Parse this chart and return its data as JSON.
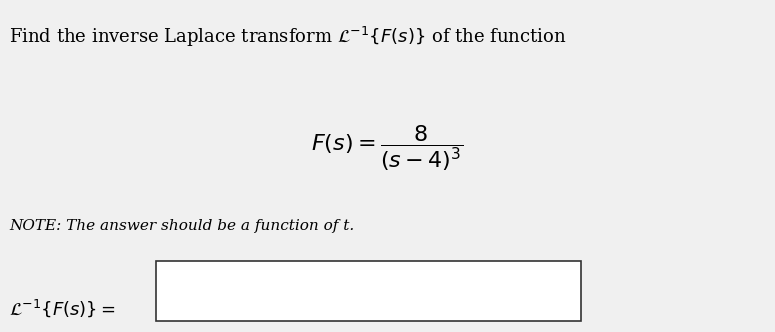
{
  "title_text": "Find the inverse Laplace transform $\\mathcal{L}^{-1}\\{F(s)\\}$ of the function",
  "formula_text": "$F(s) = \\dfrac{8}{(s-4)^3}$",
  "note_text": "NOTE: The answer should be a function of t.",
  "answer_label": "$\\mathcal{L}^{-1}\\{F(s)\\} = $",
  "bg_color": "#f0f0f0",
  "box_color": "#ffffff",
  "text_color": "#000000",
  "title_fontsize": 13,
  "formula_fontsize": 16,
  "note_fontsize": 11,
  "answer_fontsize": 13
}
